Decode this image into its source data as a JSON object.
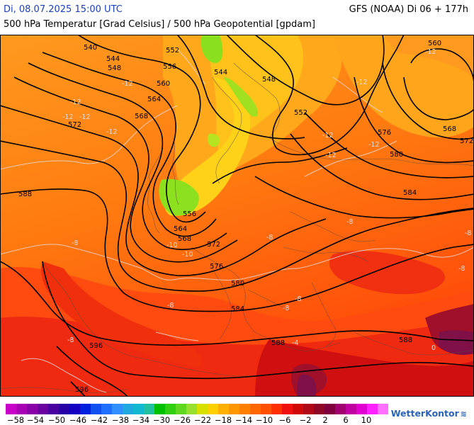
{
  "header": {
    "date": "Di, 08.07.2025 15:00 UTC",
    "model": "GFS (NOAA) Di 06 + 177h",
    "field": "500 hPa Temperatur [Grad Celsius] / 500 hPa Geopotential [gpdam]"
  },
  "contour_labels": {
    "geopotential": [
      "540",
      "544",
      "548",
      "552",
      "556",
      "560",
      "564",
      "568",
      "572",
      "576",
      "580",
      "584",
      "588",
      "596",
      "548",
      "552",
      "544",
      "556",
      "564",
      "568",
      "572",
      "576",
      "580",
      "584",
      "588",
      "596",
      "560",
      "568",
      "572",
      "576",
      "580",
      "584",
      "588"
    ],
    "temperature": [
      "-12",
      "-12",
      "-12",
      "-12",
      "-12",
      "-12",
      "-12",
      "-12",
      "-12",
      "-12",
      "-10",
      "-10",
      "-8",
      "-8",
      "-8",
      "-8",
      "-8",
      "-8",
      "-8",
      "-4",
      "0",
      "-8",
      "-8"
    ]
  },
  "scale": {
    "labels": [
      "−58",
      "−54",
      "−50",
      "−46",
      "−42",
      "−38",
      "−34",
      "−30",
      "−26",
      "−22",
      "−18",
      "−14",
      "−10",
      "−6",
      "−2",
      "2",
      "6",
      "10"
    ],
    "colors": [
      "#c800c8",
      "#a800b4",
      "#8a00a8",
      "#6a00a0",
      "#4a00a0",
      "#2800a8",
      "#1400c0",
      "#0020e0",
      "#1050f0",
      "#2070ff",
      "#3090ff",
      "#20a8e0",
      "#10b8d0",
      "#20c0a0",
      "#00c000",
      "#30d010",
      "#60d820",
      "#98e030",
      "#d8e000",
      "#ffd000",
      "#ffb000",
      "#ff9800",
      "#ff8000",
      "#ff6800",
      "#ff5000",
      "#ff3000",
      "#f01010",
      "#d00808",
      "#b00818",
      "#900828",
      "#800040",
      "#a00070",
      "#c000a0",
      "#e000d0",
      "#ff20ff",
      "#ff70ff"
    ]
  },
  "brand": {
    "name": "WetterKontor",
    "icon": "waves-icon"
  }
}
